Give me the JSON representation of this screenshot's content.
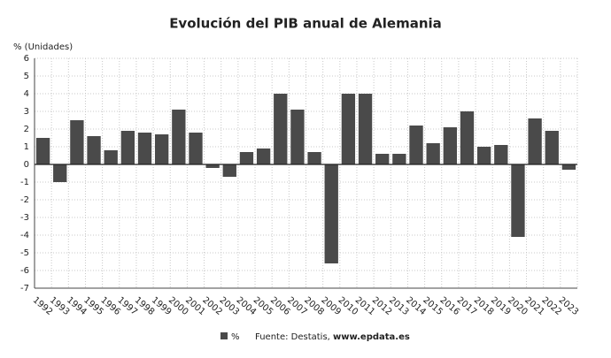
{
  "chart_data": {
    "type": "bar",
    "title": "Evolución del PIB anual de Alemania",
    "y_label": "% (Unidades)",
    "categories": [
      "1992",
      "1993",
      "1994",
      "1995",
      "1996",
      "1997",
      "1998",
      "1999",
      "2000",
      "2001",
      "2002",
      "2003",
      "2004",
      "2005",
      "2006",
      "2007",
      "2008",
      "2009",
      "2010",
      "2011",
      "2012",
      "2013",
      "2014",
      "2015",
      "2016",
      "2017",
      "2018",
      "2019",
      "2020",
      "2021",
      "2022",
      "2023"
    ],
    "series": [
      {
        "name": "%",
        "color": "#4a4a4a",
        "values": [
          1.5,
          -1.0,
          2.5,
          1.6,
          0.8,
          1.9,
          1.8,
          1.7,
          3.1,
          1.8,
          -0.2,
          -0.7,
          0.7,
          0.9,
          4.0,
          3.1,
          0.7,
          -5.6,
          4.0,
          4.0,
          0.6,
          0.6,
          2.2,
          1.2,
          2.1,
          3.0,
          1.0,
          1.1,
          -4.1,
          2.6,
          1.9,
          -0.3
        ]
      }
    ],
    "ylim": [
      -7,
      6
    ],
    "yticks": [
      -7,
      -6,
      -5,
      -4,
      -3,
      -2,
      -1,
      0,
      1,
      2,
      3,
      4,
      5,
      6
    ],
    "grid": true,
    "source": "Fuente: Destatis,",
    "source_site": "www.epdata.es"
  }
}
